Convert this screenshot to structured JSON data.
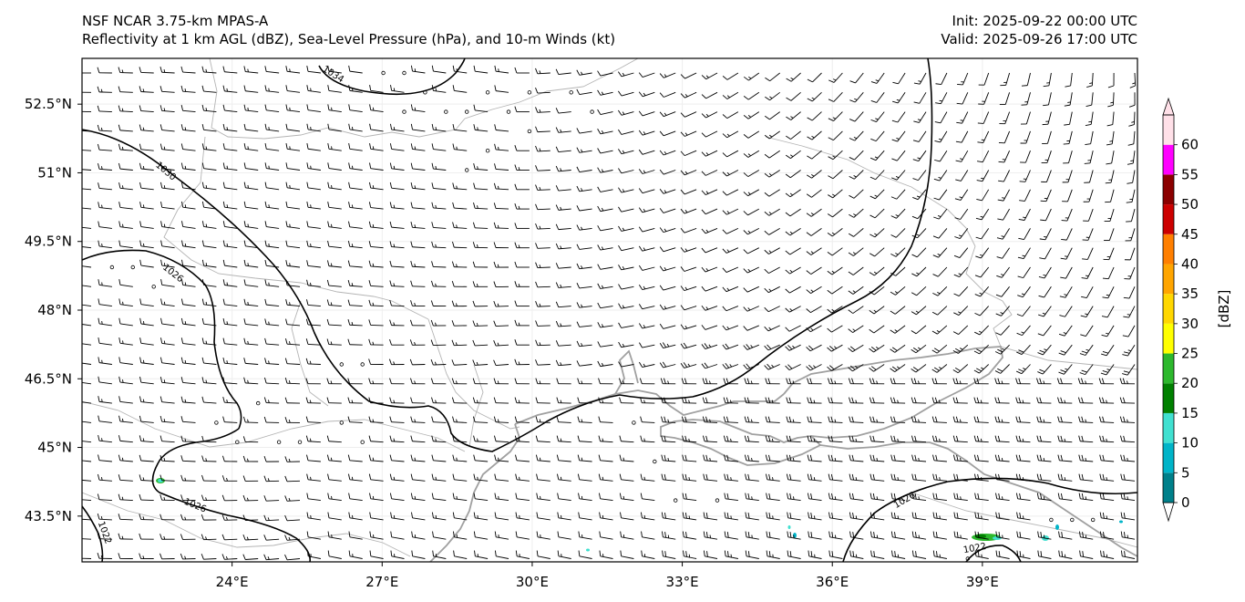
{
  "header": {
    "model": "NSF NCAR 3.75-km MPAS-A",
    "fields": "Reflectivity at 1 km AGL (dBZ), Sea-Level Pressure (hPa), and 10-m Winds (kt)",
    "init": "Init: 2025-09-22 00:00 UTC",
    "valid": "Valid: 2025-09-26 17:00 UTC"
  },
  "map": {
    "lat_labels": [
      "52.5°N",
      "51°N",
      "49.5°N",
      "48°N",
      "46.5°N",
      "45°N",
      "43.5°N"
    ],
    "lon_labels": [
      "24°E",
      "27°E",
      "30°E",
      "33°E",
      "36°E",
      "39°E"
    ],
    "lat_values": [
      52.5,
      51,
      49.5,
      48,
      46.5,
      45,
      43.5
    ],
    "lon_values": [
      24,
      27,
      30,
      33,
      36,
      39
    ],
    "extent": {
      "lon_min": 21,
      "lon_max": 42.1,
      "lat_min": 42.5,
      "lat_max": 53.5
    },
    "isobar_labels": [
      "1034",
      "1030",
      "1026",
      "1026",
      "1026",
      "1022",
      "1022"
    ],
    "colors": {
      "isobar": "#000000",
      "coast": "#a0a0a0",
      "border": "#b4b4b4",
      "barb": "#000000"
    }
  },
  "colorbar": {
    "title": "[dBZ]",
    "tick_labels": [
      "0",
      "5",
      "10",
      "15",
      "20",
      "25",
      "30",
      "35",
      "40",
      "45",
      "50",
      "55",
      "60"
    ],
    "colors": [
      "#00808a",
      "#00b4c8",
      "#40e0d0",
      "#008000",
      "#2db82d",
      "#ffff00",
      "#ffd700",
      "#ffa500",
      "#ff7f00",
      "#cc0000",
      "#8b0000",
      "#ff00ff",
      "#ffe0e8"
    ]
  }
}
